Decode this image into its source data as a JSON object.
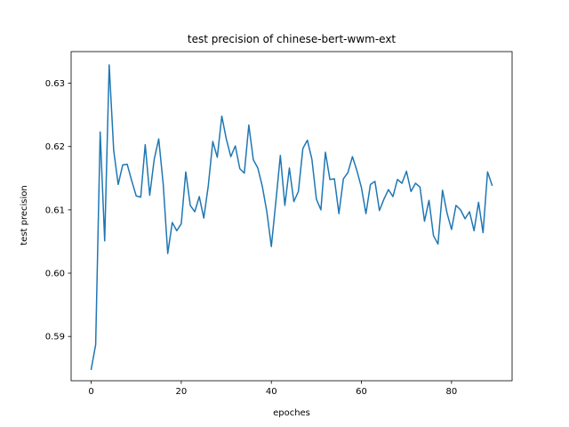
{
  "chart_data": {
    "type": "line",
    "title": "test precision of chinese-bert-wwm-ext",
    "xlabel": "epoches",
    "ylabel": "test precision",
    "xlim": [
      -4.45,
      93.45
    ],
    "ylim": [
      0.583,
      0.635
    ],
    "xticks": [
      0,
      20,
      40,
      60,
      80
    ],
    "yticks": [
      0.59,
      0.6,
      0.61,
      0.62,
      0.63
    ],
    "ytick_labels": [
      "0.59",
      "0.60",
      "0.61",
      "0.62",
      "0.63"
    ],
    "grid": false,
    "legend": "none",
    "line_color": "#1f77b4",
    "series": [
      {
        "x": [
          0,
          1,
          2,
          3,
          4,
          5,
          6,
          7,
          8,
          9,
          10,
          11,
          12,
          13,
          14,
          15,
          16,
          17,
          18,
          19,
          20,
          21,
          22,
          23,
          24,
          25,
          26,
          27,
          28,
          29,
          30,
          31,
          32,
          33,
          34,
          35,
          36,
          37,
          38,
          39,
          40,
          41,
          42,
          43,
          44,
          45,
          46,
          47,
          48,
          49,
          50,
          51,
          52,
          53,
          54,
          55,
          56,
          57,
          58,
          59,
          60,
          61,
          62,
          63,
          64,
          65,
          66,
          67,
          68,
          69,
          70,
          71,
          72,
          73,
          74,
          75,
          76,
          77,
          78,
          79,
          80,
          81,
          82,
          83,
          84,
          85,
          86,
          87,
          88,
          89
        ],
        "values": [
          0.5848,
          0.5887,
          0.6223,
          0.6051,
          0.6329,
          0.6194,
          0.614,
          0.6171,
          0.6172,
          0.6146,
          0.6122,
          0.612,
          0.6203,
          0.6123,
          0.618,
          0.6212,
          0.614,
          0.6031,
          0.608,
          0.6067,
          0.6078,
          0.616,
          0.6107,
          0.6097,
          0.6121,
          0.6087,
          0.6138,
          0.6208,
          0.6183,
          0.6248,
          0.6212,
          0.6184,
          0.6201,
          0.6165,
          0.6158,
          0.6234,
          0.6179,
          0.6166,
          0.6137,
          0.6097,
          0.6042,
          0.6113,
          0.6186,
          0.6107,
          0.6166,
          0.6113,
          0.6129,
          0.6197,
          0.621,
          0.618,
          0.6117,
          0.61,
          0.6191,
          0.6148,
          0.6149,
          0.6094,
          0.6149,
          0.6159,
          0.6184,
          0.6162,
          0.6135,
          0.6094,
          0.614,
          0.6145,
          0.6099,
          0.6117,
          0.6132,
          0.6121,
          0.6148,
          0.6142,
          0.6161,
          0.6129,
          0.6142,
          0.6136,
          0.6082,
          0.6115,
          0.6059,
          0.6046,
          0.6131,
          0.6095,
          0.6069,
          0.6107,
          0.61,
          0.6086,
          0.6097,
          0.6067,
          0.6112,
          0.6064,
          0.616,
          0.6139
        ]
      }
    ]
  }
}
